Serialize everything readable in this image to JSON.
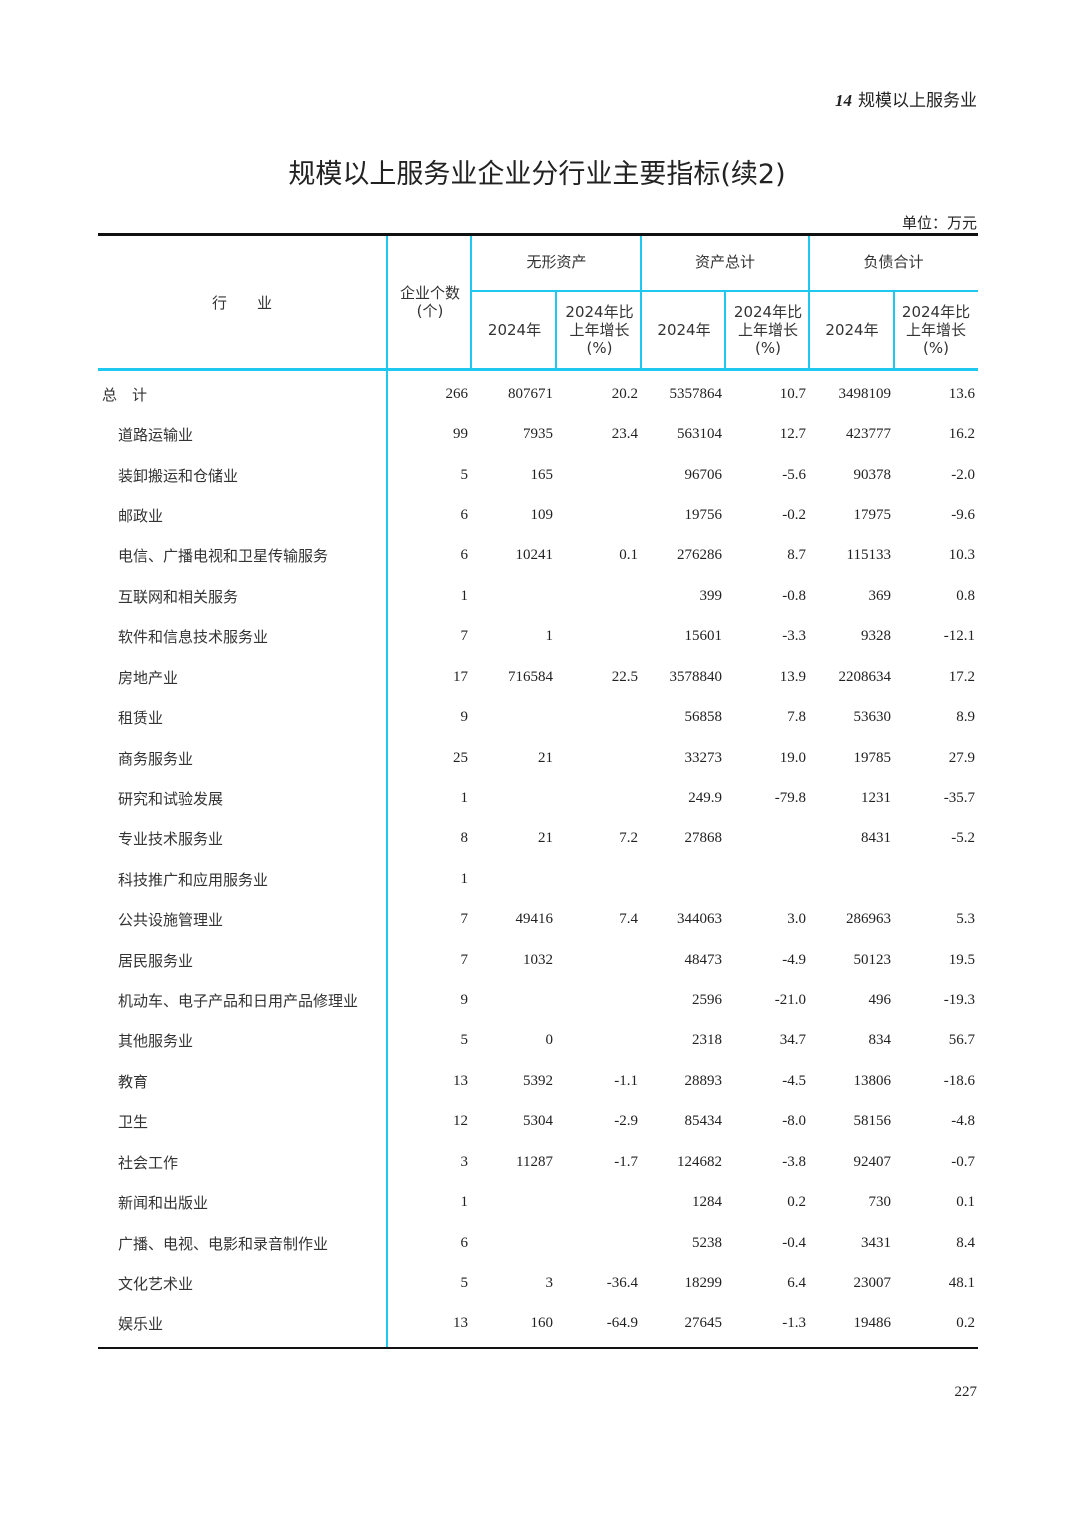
{
  "header": {
    "chapter_number": "14",
    "chapter_title": "规模以上服务业"
  },
  "title": "规模以上服务业企业分行业主要指标(续2)",
  "unit": "单位：万元",
  "columns": {
    "industry": "行　　业",
    "count": "企业个数\n(个)",
    "groups": [
      "无形资产",
      "资产总计",
      "负债合计"
    ],
    "sub_value": "2024年",
    "sub_growth": "2024年比\n上年增长\n(%)"
  },
  "colors": {
    "rule_accent": "#1ec8f0",
    "rule_main": "#111111"
  },
  "rows": [
    {
      "name": "总　计",
      "v": [
        "266",
        "807671",
        "20.2",
        "5357864",
        "10.7",
        "3498109",
        "13.6"
      ]
    },
    {
      "name": "道路运输业",
      "v": [
        "99",
        "7935",
        "23.4",
        "563104",
        "12.7",
        "423777",
        "16.2"
      ]
    },
    {
      "name": "装卸搬运和仓储业",
      "v": [
        "5",
        "165",
        "",
        "96706",
        "-5.6",
        "90378",
        "-2.0"
      ]
    },
    {
      "name": "邮政业",
      "v": [
        "6",
        "109",
        "",
        "19756",
        "-0.2",
        "17975",
        "-9.6"
      ]
    },
    {
      "name": "电信、广播电视和卫星传输服务",
      "v": [
        "6",
        "10241",
        "0.1",
        "276286",
        "8.7",
        "115133",
        "10.3"
      ]
    },
    {
      "name": "互联网和相关服务",
      "v": [
        "1",
        "",
        "",
        "399",
        "-0.8",
        "369",
        "0.8"
      ]
    },
    {
      "name": "软件和信息技术服务业",
      "v": [
        "7",
        "1",
        "",
        "15601",
        "-3.3",
        "9328",
        "-12.1"
      ]
    },
    {
      "name": "房地产业",
      "v": [
        "17",
        "716584",
        "22.5",
        "3578840",
        "13.9",
        "2208634",
        "17.2"
      ]
    },
    {
      "name": "租赁业",
      "v": [
        "9",
        "",
        "",
        "56858",
        "7.8",
        "53630",
        "8.9"
      ]
    },
    {
      "name": "商务服务业",
      "v": [
        "25",
        "21",
        "",
        "33273",
        "19.0",
        "19785",
        "27.9"
      ]
    },
    {
      "name": "研究和试验发展",
      "v": [
        "1",
        "",
        "",
        "249.9",
        "-79.8",
        "1231",
        "-35.7"
      ]
    },
    {
      "name": "专业技术服务业",
      "v": [
        "8",
        "21",
        "7.2",
        "27868",
        "",
        "8431",
        "-5.2"
      ]
    },
    {
      "name": "科技推广和应用服务业",
      "v": [
        "1",
        "",
        "",
        "",
        "",
        "",
        ""
      ]
    },
    {
      "name": "公共设施管理业",
      "v": [
        "7",
        "49416",
        "7.4",
        "344063",
        "3.0",
        "286963",
        "5.3"
      ]
    },
    {
      "name": "居民服务业",
      "v": [
        "7",
        "1032",
        "",
        "48473",
        "-4.9",
        "50123",
        "19.5"
      ]
    },
    {
      "name": "机动车、电子产品和日用产品修理业",
      "v": [
        "9",
        "",
        "",
        "2596",
        "-21.0",
        "496",
        "-19.3"
      ]
    },
    {
      "name": "其他服务业",
      "v": [
        "5",
        "0",
        "",
        "2318",
        "34.7",
        "834",
        "56.7"
      ]
    },
    {
      "name": "教育",
      "v": [
        "13",
        "5392",
        "-1.1",
        "28893",
        "-4.5",
        "13806",
        "-18.6"
      ]
    },
    {
      "name": "卫生",
      "v": [
        "12",
        "5304",
        "-2.9",
        "85434",
        "-8.0",
        "58156",
        "-4.8"
      ]
    },
    {
      "name": "社会工作",
      "v": [
        "3",
        "11287",
        "-1.7",
        "124682",
        "-3.8",
        "92407",
        "-0.7"
      ]
    },
    {
      "name": "新闻和出版业",
      "v": [
        "1",
        "",
        "",
        "1284",
        "0.2",
        "730",
        "0.1"
      ]
    },
    {
      "name": "广播、电视、电影和录音制作业",
      "v": [
        "6",
        "",
        "",
        "5238",
        "-0.4",
        "3431",
        "8.4"
      ]
    },
    {
      "name": "文化艺术业",
      "v": [
        "5",
        "3",
        "-36.4",
        "18299",
        "6.4",
        "23007",
        "48.1"
      ]
    },
    {
      "name": "娱乐业",
      "v": [
        "13",
        "160",
        "-64.9",
        "27645",
        "-1.3",
        "19486",
        "0.2"
      ]
    }
  ],
  "page_number": "227"
}
